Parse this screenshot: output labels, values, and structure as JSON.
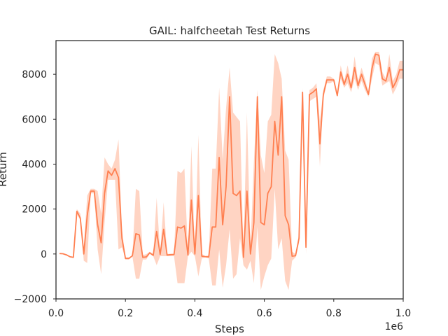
{
  "chart_data": {
    "type": "line",
    "title": "GAIL: halfcheetah Test Returns",
    "xlabel": "Steps",
    "ylabel": "Return",
    "x_offset_label": "1e6",
    "xlim": [
      0.0,
      1.0
    ],
    "ylim": [
      -2000,
      9500
    ],
    "x_ticks": [
      0.0,
      0.2,
      0.4,
      0.6,
      0.8,
      1.0
    ],
    "x_tick_labels": [
      "0.0",
      "0.2",
      "0.4",
      "0.6",
      "0.8",
      "1.0"
    ],
    "y_ticks": [
      -2000,
      0,
      2000,
      4000,
      6000,
      8000
    ],
    "y_tick_labels": [
      "−2000",
      "0",
      "2000",
      "4000",
      "6000",
      "8000"
    ],
    "grid": false,
    "colors": {
      "line": "#ff7f50",
      "band": "#ffa07a"
    },
    "series": [
      {
        "x": [
          0.01,
          0.02,
          0.03,
          0.04,
          0.05,
          0.06,
          0.07,
          0.08,
          0.09,
          0.1,
          0.11,
          0.12,
          0.13,
          0.14,
          0.15,
          0.16,
          0.17,
          0.18,
          0.19,
          0.2,
          0.21,
          0.22,
          0.23,
          0.24,
          0.25,
          0.26,
          0.27,
          0.28,
          0.29,
          0.3,
          0.31,
          0.32,
          0.33,
          0.34,
          0.35,
          0.36,
          0.37,
          0.38,
          0.39,
          0.4,
          0.41,
          0.42,
          0.43,
          0.44,
          0.45,
          0.46,
          0.47,
          0.48,
          0.49,
          0.5,
          0.51,
          0.52,
          0.53,
          0.54,
          0.55,
          0.56,
          0.57,
          0.58,
          0.59,
          0.6,
          0.61,
          0.62,
          0.63,
          0.64,
          0.65,
          0.66,
          0.67,
          0.68,
          0.69,
          0.7,
          0.71,
          0.72,
          0.73,
          0.74,
          0.75,
          0.76,
          0.77,
          0.78,
          0.79,
          0.8,
          0.81,
          0.82,
          0.83,
          0.84,
          0.85,
          0.86,
          0.87,
          0.88,
          0.89,
          0.9,
          0.91,
          0.92,
          0.93,
          0.94,
          0.95,
          0.96,
          0.97,
          0.98,
          0.99,
          1.0
        ],
        "y": [
          20,
          10,
          -40,
          -120,
          -150,
          1900,
          1600,
          0,
          1700,
          2800,
          2800,
          1300,
          500,
          2700,
          3700,
          3500,
          3800,
          3400,
          700,
          -200,
          -200,
          -80,
          900,
          850,
          -150,
          -130,
          50,
          -60,
          1000,
          -20,
          1100,
          -50,
          -30,
          -20,
          1200,
          1150,
          1250,
          -50,
          2400,
          0,
          2600,
          -100,
          -120,
          -130,
          1200,
          1200,
          4300,
          1300,
          3000,
          7000,
          2700,
          2600,
          2800,
          -150,
          2800,
          0,
          1400,
          7000,
          1400,
          1300,
          2700,
          3000,
          5900,
          4400,
          7000,
          1700,
          1300,
          -100,
          -80,
          700,
          7200,
          300,
          7100,
          7200,
          7350,
          4900,
          7100,
          7750,
          7750,
          7750,
          7050,
          8100,
          7550,
          8000,
          7400,
          8300,
          7500,
          8000,
          7550,
          7100,
          8250,
          8900,
          8850,
          7800,
          7700,
          8300,
          7400,
          7700,
          8200,
          8200
        ],
        "y_low": [
          0,
          -10,
          -60,
          -140,
          -170,
          1800,
          1500,
          -300,
          -400,
          2700,
          2700,
          200,
          -900,
          1400,
          3300,
          3300,
          3300,
          200,
          300,
          -250,
          -250,
          -100,
          -1100,
          -1100,
          -250,
          -250,
          0,
          -100,
          -500,
          -100,
          -100,
          -100,
          -100,
          -100,
          -1300,
          -1300,
          -1300,
          -100,
          100,
          -100,
          -1000,
          -200,
          -150,
          -200,
          -1400,
          -1400,
          200,
          -1500,
          -500,
          1100,
          -1100,
          -900,
          700,
          -500,
          -700,
          -300,
          -1300,
          1200,
          -1600,
          -1000,
          -500,
          -200,
          2900,
          200,
          700,
          -1200,
          -1600,
          -300,
          -150,
          500,
          6900,
          0,
          6800,
          6900,
          7000,
          3900,
          6900,
          7600,
          7600,
          7700,
          7000,
          7800,
          7400,
          7600,
          7200,
          7800,
          7300,
          7700,
          7300,
          7000,
          7800,
          8500,
          8400,
          7500,
          7600,
          7700,
          7100,
          7400,
          7800,
          7800
        ],
        "y_high": [
          40,
          30,
          -20,
          -100,
          -130,
          2000,
          1800,
          300,
          2600,
          2900,
          2900,
          2800,
          1800,
          4300,
          4000,
          3800,
          4200,
          5100,
          1100,
          -150,
          -150,
          -60,
          2900,
          2800,
          -50,
          -10,
          100,
          0,
          2500,
          60,
          2300,
          0,
          0,
          0,
          3700,
          3600,
          3800,
          0,
          4800,
          100,
          5300,
          0,
          -90,
          -60,
          3800,
          3800,
          7400,
          4200,
          6500,
          8300,
          6300,
          6100,
          5900,
          200,
          6300,
          300,
          4100,
          7300,
          4400,
          3600,
          5900,
          6200,
          8900,
          8500,
          7800,
          4600,
          4200,
          100,
          0,
          900,
          7400,
          600,
          7300,
          7400,
          7600,
          5900,
          7300,
          7900,
          7900,
          7800,
          7100,
          8400,
          7700,
          8400,
          7600,
          8800,
          7700,
          8300,
          7800,
          7200,
          8700,
          9000,
          9000,
          8100,
          7800,
          8900,
          7700,
          8000,
          8600,
          8600
        ]
      }
    ]
  }
}
